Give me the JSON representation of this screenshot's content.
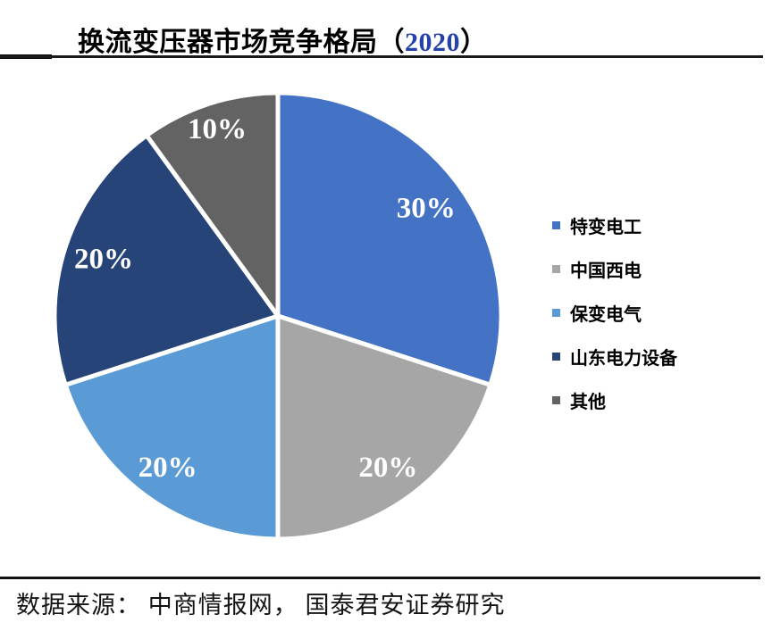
{
  "header": {
    "title_prefix": "换流变压器市场竞争格局（",
    "title_year": "2020",
    "title_suffix": "）"
  },
  "colors": {
    "title_year": "#2442A8",
    "rule": "#000000",
    "pie_label_text": "#FFFFFF"
  },
  "chart_data": {
    "type": "pie",
    "title": "换流变压器市场竞争格局（2020）",
    "legend_position": "right",
    "direction": "clockwise",
    "start_angle_deg": 0,
    "total": 100,
    "series": [
      {
        "name": "特变电工",
        "value": 30,
        "label": "30%",
        "color": "#4472C4",
        "label_radius_frac": 0.82
      },
      {
        "name": "中国西电",
        "value": 20,
        "label": "20%",
        "color": "#A6A6A6",
        "label_radius_frac": 0.84
      },
      {
        "name": "保变电气",
        "value": 20,
        "label": "20%",
        "color": "#5B9BD5",
        "label_radius_frac": 0.84
      },
      {
        "name": "山东电力设备",
        "value": 20,
        "label": "20%",
        "color": "#264478",
        "label_radius_frac": 0.82
      },
      {
        "name": "其他",
        "value": 10,
        "label": "10%",
        "color": "#636363",
        "label_radius_frac": 0.88
      }
    ]
  },
  "footer": {
    "source_text": "数据来源：  中商情报网，  国泰君安证券研究"
  }
}
